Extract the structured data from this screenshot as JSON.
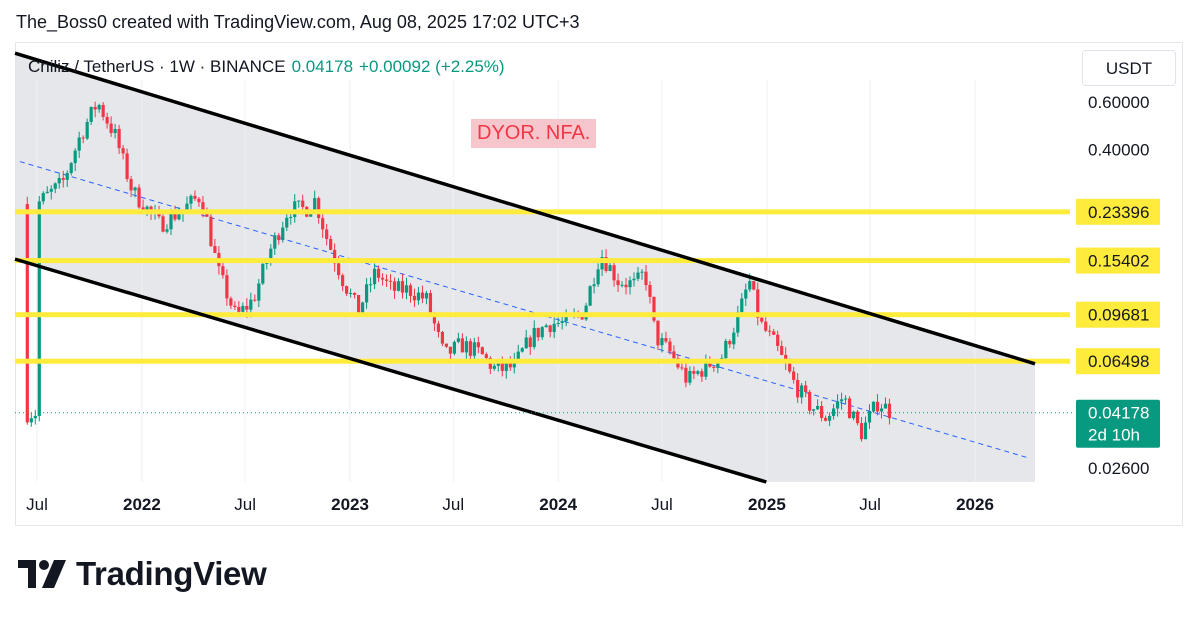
{
  "attribution": "The_Boss0 created with TradingView.com, Aug 08, 2025 17:02 UTC+3",
  "header": {
    "symbol": "Chiliz / TetherUS · 1W · BINANCE",
    "last_price": "0.04178",
    "change": "+0.00092 (+2.25%)"
  },
  "annotation": "DYOR. NFA.",
  "currency_button": "USDT",
  "brand": "TradingView",
  "colors": {
    "up": "#089981",
    "down": "#f23645",
    "level_line": "#ffeb3b",
    "channel_fill": "#e1e3e8",
    "channel_line": "#000000",
    "midline": "#2962ff"
  },
  "chart_data": {
    "type": "candlestick",
    "title": "Chiliz / TetherUS · 1W · BINANCE",
    "y_scale": "log",
    "y_axis_labels": [
      "0.60000",
      "0.40000",
      "0.02600"
    ],
    "x_tick_labels": [
      "Jul",
      "2022",
      "Jul",
      "2023",
      "Jul",
      "2024",
      "Jul",
      "2025",
      "Jul",
      "2026"
    ],
    "x_range": [
      "2021-06",
      "2026-06"
    ],
    "horizontal_levels": [
      {
        "label": "0.23396",
        "value": 0.23396
      },
      {
        "label": "0.15402",
        "value": 0.15402
      },
      {
        "label": "0.09681",
        "value": 0.09681
      },
      {
        "label": "0.06498",
        "value": 0.06498
      }
    ],
    "current_price": {
      "label": "0.04178",
      "value": 0.04178,
      "countdown": "2d 10h"
    },
    "descending_channel": {
      "upper": [
        [
          "2021-06-01",
          0.9
        ],
        [
          "2026-04-01",
          0.06498
        ]
      ],
      "lower": [
        [
          "2021-06-01",
          0.154
        ],
        [
          "2025-06-01",
          0.0185
        ]
      ],
      "midline": [
        [
          "2021-06-01",
          0.36
        ],
        [
          "2026-04-01",
          0.0285
        ]
      ]
    },
    "price_path": [
      [
        "2021-07-01",
        0.25
      ],
      [
        "2021-08-15",
        0.3
      ],
      [
        "2021-09-15",
        0.45
      ],
      [
        "2021-10-15",
        0.6
      ],
      [
        "2021-11-15",
        0.45
      ],
      [
        "2021-12-15",
        0.28
      ],
      [
        "2022-02-01",
        0.21
      ],
      [
        "2022-03-15",
        0.24
      ],
      [
        "2022-04-15",
        0.27
      ],
      [
        "2022-05-15",
        0.14
      ],
      [
        "2022-06-15",
        0.095
      ],
      [
        "2022-07-15",
        0.11
      ],
      [
        "2022-08-15",
        0.17
      ],
      [
        "2022-09-15",
        0.24
      ],
      [
        "2022-10-15",
        0.24
      ],
      [
        "2022-11-01",
        0.26
      ],
      [
        "2022-11-20",
        0.19
      ],
      [
        "2022-12-20",
        0.13
      ],
      [
        "2023-01-15",
        0.1
      ],
      [
        "2023-02-15",
        0.14
      ],
      [
        "2023-03-15",
        0.12
      ],
      [
        "2023-04-15",
        0.12
      ],
      [
        "2023-05-15",
        0.11
      ],
      [
        "2023-06-15",
        0.068
      ],
      [
        "2023-07-15",
        0.075
      ],
      [
        "2023-08-15",
        0.07
      ],
      [
        "2023-09-15",
        0.06
      ],
      [
        "2023-10-15",
        0.062
      ],
      [
        "2023-11-15",
        0.08
      ],
      [
        "2023-12-15",
        0.09
      ],
      [
        "2024-01-15",
        0.09
      ],
      [
        "2024-02-15",
        0.1
      ],
      [
        "2024-03-15",
        0.165
      ],
      [
        "2024-04-15",
        0.13
      ],
      [
        "2024-05-15",
        0.125
      ],
      [
        "2024-06-01",
        0.14
      ],
      [
        "2024-06-20",
        0.08
      ],
      [
        "2024-07-15",
        0.07
      ],
      [
        "2024-08-15",
        0.055
      ],
      [
        "2024-09-15",
        0.062
      ],
      [
        "2024-10-15",
        0.068
      ],
      [
        "2024-11-15",
        0.1
      ],
      [
        "2024-12-01",
        0.13
      ],
      [
        "2024-12-20",
        0.09
      ],
      [
        "2025-01-15",
        0.075
      ],
      [
        "2025-02-15",
        0.055
      ],
      [
        "2025-03-15",
        0.045
      ],
      [
        "2025-04-15",
        0.04
      ],
      [
        "2025-05-15",
        0.048
      ],
      [
        "2025-06-15",
        0.035
      ],
      [
        "2025-07-15",
        0.046
      ],
      [
        "2025-08-08",
        0.04178
      ]
    ]
  }
}
